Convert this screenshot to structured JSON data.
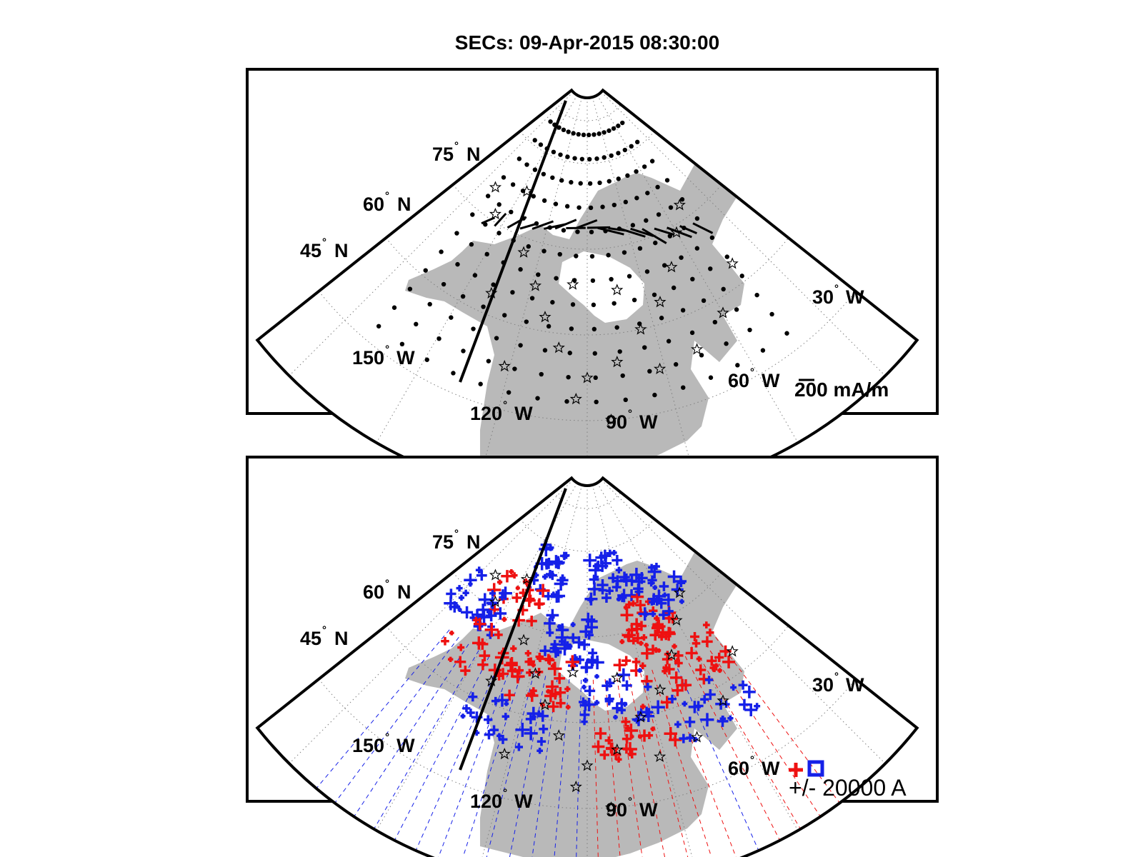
{
  "figure": {
    "title": "SECs: 09-Apr-2015 08:30:00"
  },
  "map_labels": {
    "lat": [
      {
        "value": "75",
        "hem": "N"
      },
      {
        "value": "60",
        "hem": "N"
      },
      {
        "value": "45",
        "hem": "N"
      }
    ],
    "lon": [
      {
        "value": "30",
        "hem": "W"
      },
      {
        "value": "150",
        "hem": "W"
      },
      {
        "value": "60",
        "hem": "W"
      },
      {
        "value": "120",
        "hem": "W"
      },
      {
        "value": "90",
        "hem": "W"
      }
    ],
    "degree_symbol": "°"
  },
  "panels": [
    {
      "id": "top",
      "content": "equivalent current vectors",
      "scale_label": "200 mA/m"
    },
    {
      "id": "bottom",
      "content": "SEC amplitudes",
      "scale_label": "+/- 20000 A"
    }
  ],
  "colors": {
    "land": "#b9b9b9",
    "positive": "#ee1111",
    "negative": "#1520e8",
    "grid": "#808080",
    "ink": "#000000"
  },
  "icons": {
    "station": "star-icon",
    "grid_point": "dot-icon",
    "positive_marker": "plus-icon",
    "negative_marker": "square-icon"
  }
}
